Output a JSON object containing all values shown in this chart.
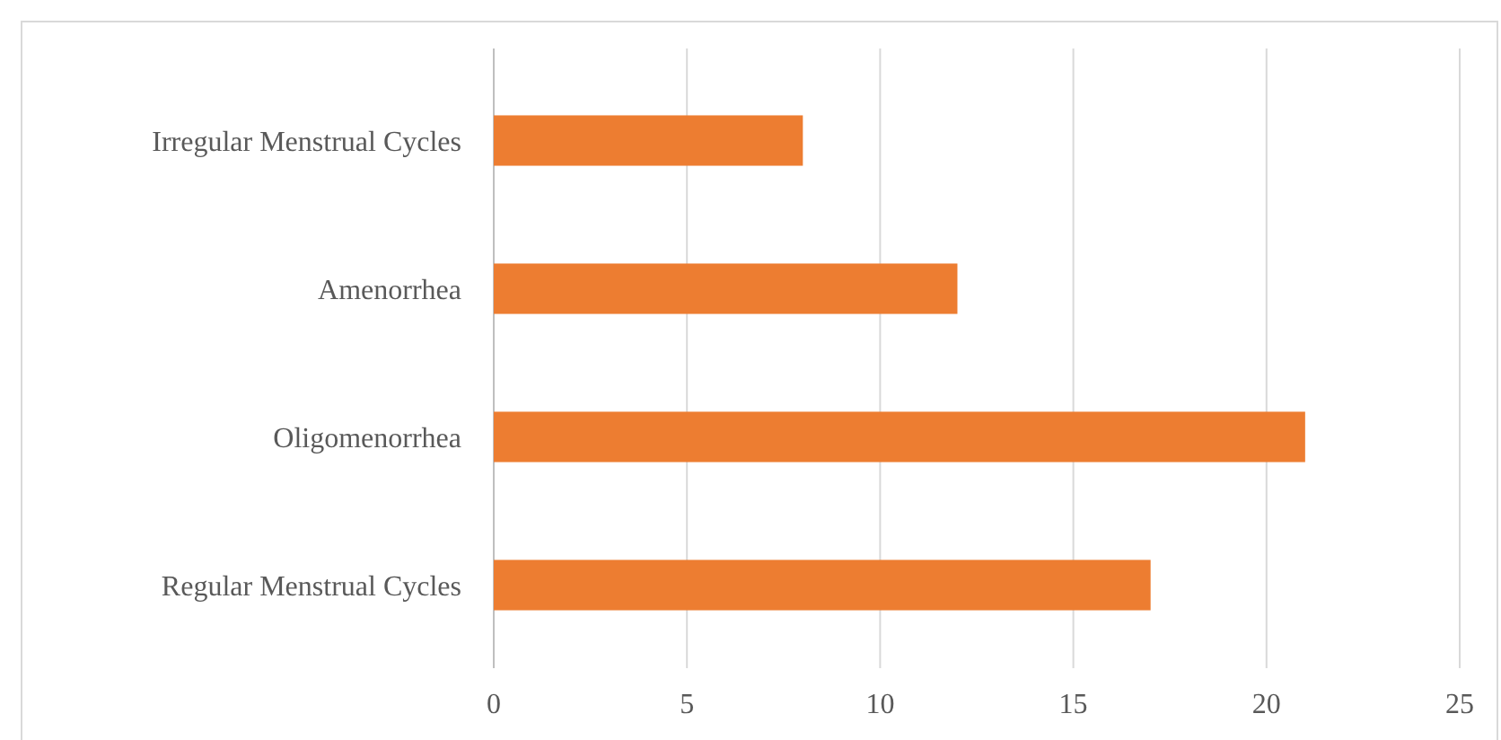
{
  "chart_data": {
    "type": "bar",
    "orientation": "horizontal",
    "categories": [
      "Irregular Menstrual Cycles",
      "Amenorrhea",
      "Oligomenorrhea",
      "Regular Menstrual Cycles"
    ],
    "values": [
      8,
      12,
      21,
      17
    ],
    "color": "#ed7d31",
    "xlim": [
      0,
      25
    ],
    "xticks": [
      0,
      5,
      10,
      15,
      20,
      25
    ],
    "grid": "x"
  }
}
